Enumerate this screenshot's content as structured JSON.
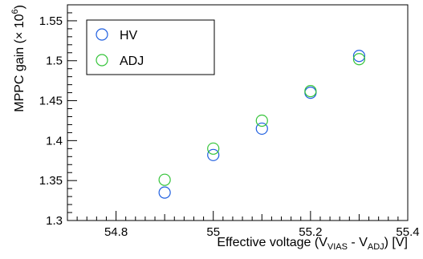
{
  "chart_data": {
    "type": "scatter",
    "xlabel": {
      "prefix": "Effective voltage (V",
      "sub1": "VIAS",
      "middle": " - V",
      "sub2": "ADJ",
      "suffix": ") [V]"
    },
    "ylabel": {
      "prefix": "MPPC gain (× 10",
      "sup": "6",
      "suffix": ")"
    },
    "xlim": [
      54.7,
      55.4
    ],
    "ylim": [
      1.3,
      1.57
    ],
    "x_ticks": [
      {
        "value": 54.8,
        "label": "54.8"
      },
      {
        "value": 55.0,
        "label": "55"
      },
      {
        "value": 55.2,
        "label": "55.2"
      },
      {
        "value": 55.4,
        "label": "55.4"
      }
    ],
    "y_ticks": [
      {
        "value": 1.3,
        "label": "1.3"
      },
      {
        "value": 1.35,
        "label": "1.35"
      },
      {
        "value": 1.4,
        "label": "1.4"
      },
      {
        "value": 1.45,
        "label": "1.45"
      },
      {
        "value": 1.5,
        "label": "1.5"
      },
      {
        "value": 1.55,
        "label": "1.55"
      }
    ],
    "legend_position": "top-left",
    "series": [
      {
        "name": "HV",
        "color": "#1f5fe0",
        "marker": "open-circle",
        "points": [
          {
            "x": 54.9,
            "y": 1.335
          },
          {
            "x": 55.0,
            "y": 1.382
          },
          {
            "x": 55.1,
            "y": 1.415
          },
          {
            "x": 55.2,
            "y": 1.46
          },
          {
            "x": 55.3,
            "y": 1.506
          }
        ]
      },
      {
        "name": "ADJ",
        "color": "#35c43a",
        "marker": "open-circle",
        "points": [
          {
            "x": 54.9,
            "y": 1.351
          },
          {
            "x": 55.0,
            "y": 1.39
          },
          {
            "x": 55.1,
            "y": 1.425
          },
          {
            "x": 55.2,
            "y": 1.462
          },
          {
            "x": 55.3,
            "y": 1.502
          }
        ]
      }
    ]
  }
}
